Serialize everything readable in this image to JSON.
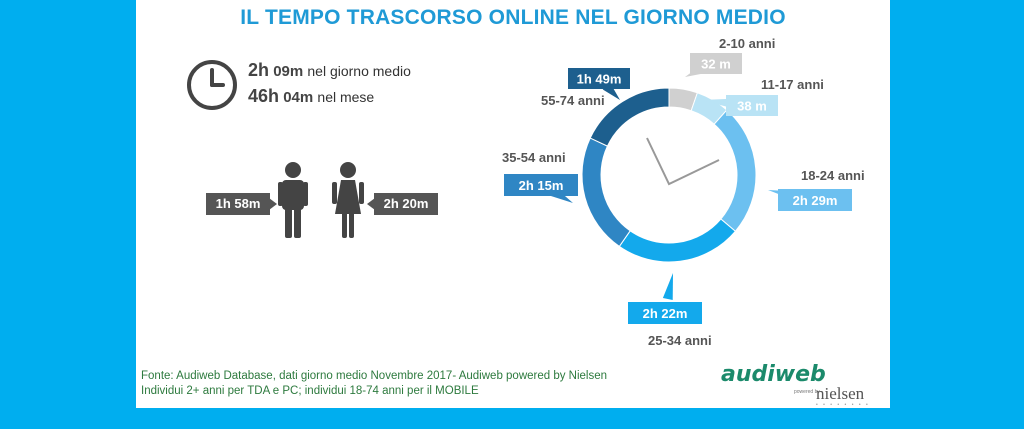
{
  "title": "IL TEMPO TRASCORSO ONLINE NEL GIORNO MEDIO",
  "stats": {
    "daily_hours": "2h",
    "daily_minutes": "09m",
    "daily_label": "nel giorno medio",
    "monthly_hours": "46h",
    "monthly_minutes": "04m",
    "monthly_label": "nel mese"
  },
  "gender": {
    "male_time": "1h 58m",
    "female_time": "2h 20m"
  },
  "footer": {
    "line1": "Fonte: Audiweb Database, dati giorno medio Novembre 2017- Audiweb powered by Nielsen",
    "line2": "Individui 2+ anni per TDA e PC; individui 18-74 anni per il MOBILE"
  },
  "logo": {
    "audiweb": "audiweb",
    "powered": "powered by",
    "nielsen": "nielsen",
    "dots": "• • • • • • • •"
  },
  "chart_data": {
    "type": "pie",
    "subtype": "donut",
    "title": "",
    "segments": [
      {
        "label": "2-10 anni",
        "value": "32 m",
        "minutes": 32,
        "color": "#d0d0d0",
        "text_color": "#ffffff"
      },
      {
        "label": "11-17 anni",
        "value": "38 m",
        "minutes": 38,
        "color": "#b9e3f5",
        "text_color": "#ffffff"
      },
      {
        "label": "18-24 anni",
        "value": "2h 29m",
        "minutes": 149,
        "color": "#6cc0f0",
        "text_color": "#ffffff"
      },
      {
        "label": "25-34 anni",
        "value": "2h 22m",
        "minutes": 142,
        "color": "#13a9ec",
        "text_color": "#ffffff"
      },
      {
        "label": "35-54 anni",
        "value": "2h 15m",
        "minutes": 135,
        "color": "#2f86c4",
        "text_color": "#ffffff"
      },
      {
        "label": "55-74 anni",
        "value": "1h 49m",
        "minutes": 109,
        "color": "#1d5f8e",
        "text_color": "#ffffff"
      }
    ]
  }
}
